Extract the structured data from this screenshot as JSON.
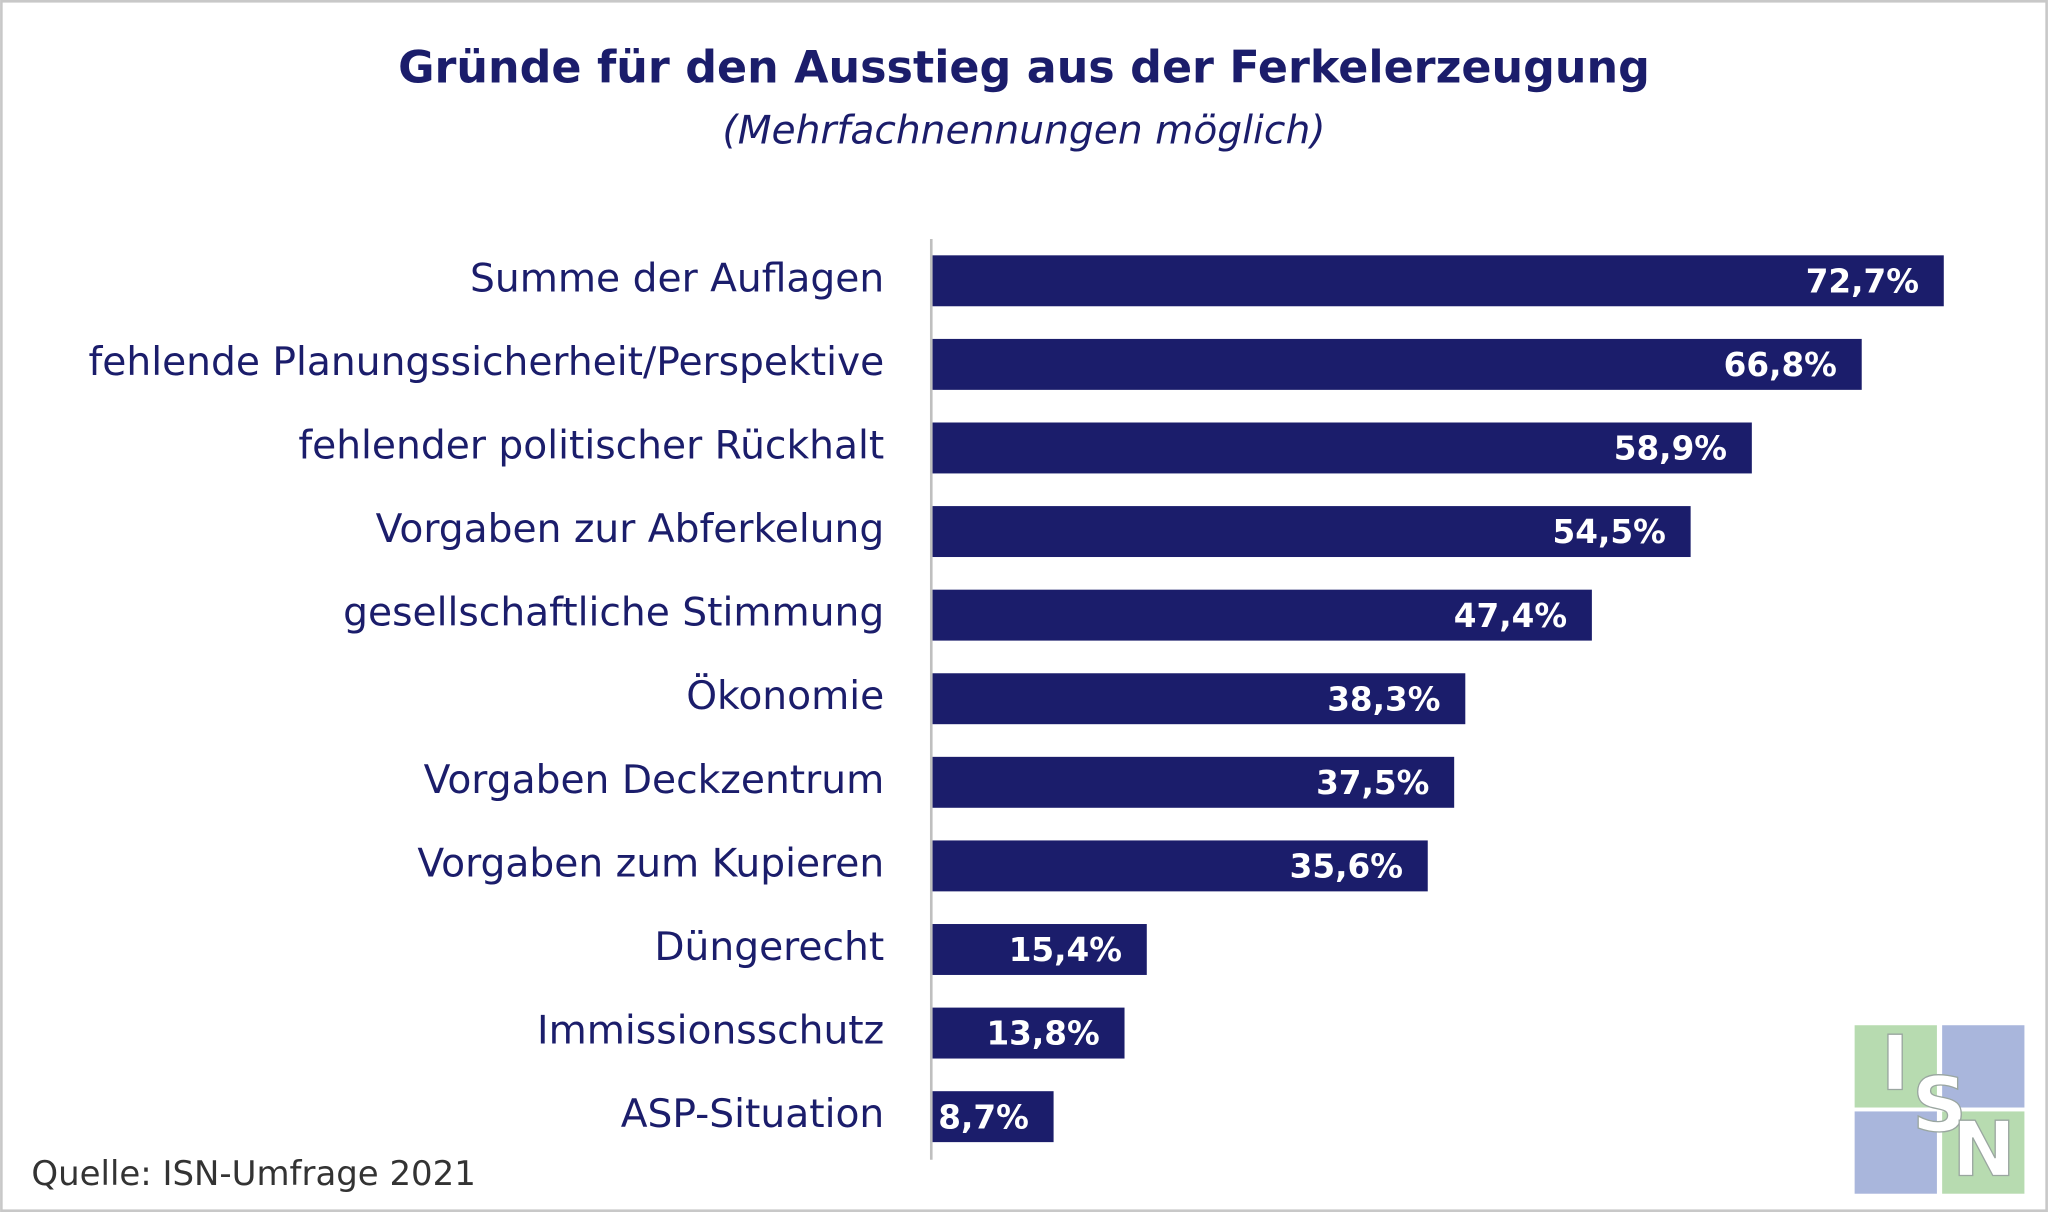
{
  "chart_data": {
    "type": "bar",
    "orientation": "horizontal",
    "title": "Gründe für den Ausstieg aus der Ferkelerzeugung",
    "subtitle": "(Mehrfachnennungen möglich)",
    "categories": [
      "Summe der Auflagen",
      "fehlende Planungssicherheit/Perspektive",
      "fehlender politischer Rückhalt",
      "Vorgaben zur Abferkelung",
      "gesellschaftliche Stimmung",
      "Ökonomie",
      "Vorgaben Deckzentrum",
      "Vorgaben zum Kupieren",
      "Düngerecht",
      "Immissionsschutz",
      "ASP-Situation"
    ],
    "values": [
      72.7,
      66.8,
      58.9,
      54.5,
      47.4,
      38.3,
      37.5,
      35.6,
      15.4,
      13.8,
      8.7
    ],
    "value_labels": [
      "72,7%",
      "66,8%",
      "58,9%",
      "54,5%",
      "47,4%",
      "38,3%",
      "37,5%",
      "35,6%",
      "15,4%",
      "13,8%",
      "8,7%"
    ],
    "color": "#1b1d6b",
    "source": "Quelle: ISN-Umfrage 2021",
    "logo": [
      "I",
      "S",
      "N"
    ]
  }
}
